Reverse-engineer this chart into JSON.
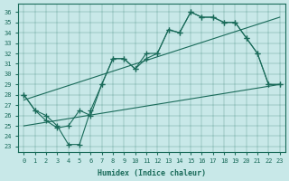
{
  "xlabel": "Humidex (Indice chaleur)",
  "bg_color": "#c8e8e8",
  "line_color": "#1a6b5a",
  "xlim": [
    -0.5,
    23.5
  ],
  "ylim": [
    22.5,
    36.8
  ],
  "xticks": [
    0,
    1,
    2,
    3,
    4,
    5,
    6,
    7,
    8,
    9,
    10,
    11,
    12,
    13,
    14,
    15,
    16,
    17,
    18,
    19,
    20,
    21,
    22,
    23
  ],
  "yticks": [
    23,
    24,
    25,
    26,
    27,
    28,
    29,
    30,
    31,
    32,
    33,
    34,
    35,
    36
  ],
  "series1_x": [
    0,
    1,
    2,
    3,
    4,
    5,
    6,
    7,
    8,
    9,
    10,
    11,
    12,
    13,
    14,
    15,
    16,
    17,
    18,
    19,
    20,
    21,
    22,
    23
  ],
  "series1_y": [
    28.0,
    26.5,
    26.0,
    25.0,
    23.2,
    23.2,
    26.5,
    29.0,
    31.5,
    31.5,
    30.5,
    32.0,
    32.0,
    34.3,
    34.0,
    36.0,
    35.5,
    35.5,
    35.0,
    35.0,
    33.5,
    32.0,
    29.0,
    29.0
  ],
  "series2_x": [
    0,
    1,
    2,
    3,
    4,
    5,
    6,
    7,
    8,
    9,
    10,
    11,
    12,
    13,
    14,
    15,
    16,
    17,
    18,
    19,
    20,
    21,
    22,
    23
  ],
  "series2_y": [
    28.0,
    26.5,
    25.5,
    24.8,
    25.0,
    26.5,
    26.0,
    29.0,
    31.5,
    31.5,
    30.5,
    31.5,
    32.0,
    34.3,
    34.0,
    36.0,
    35.5,
    35.5,
    35.0,
    35.0,
    33.5,
    32.0,
    29.0,
    29.0
  ],
  "trend1_x": [
    0,
    23
  ],
  "trend1_y": [
    27.5,
    35.5
  ],
  "trend2_x": [
    0,
    23
  ],
  "trend2_y": [
    25.0,
    29.0
  ]
}
